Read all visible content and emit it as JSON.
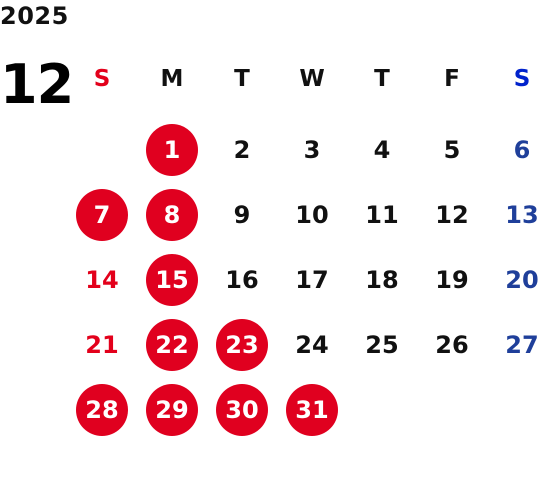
{
  "calendar": {
    "year": "2025",
    "month": "12",
    "weekdays": [
      "S",
      "M",
      "T",
      "W",
      "T",
      "F",
      "S"
    ],
    "weeks": [
      [
        "",
        "1",
        "2",
        "3",
        "4",
        "5",
        "6"
      ],
      [
        "7",
        "8",
        "9",
        "10",
        "11",
        "12",
        "13"
      ],
      [
        "14",
        "15",
        "16",
        "17",
        "18",
        "19",
        "20"
      ],
      [
        "21",
        "22",
        "23",
        "24",
        "25",
        "26",
        "27"
      ],
      [
        "28",
        "29",
        "30",
        "31",
        "",
        "",
        ""
      ]
    ],
    "highlighted_days": [
      "1",
      "7",
      "8",
      "15",
      "22",
      "23",
      "28",
      "29",
      "30",
      "31"
    ]
  },
  "colors": {
    "sunday": "#e3001b",
    "saturday_header": "#0022cc",
    "saturday": "#1f3f9a",
    "highlight": "#e0001f",
    "text": "#111111"
  }
}
